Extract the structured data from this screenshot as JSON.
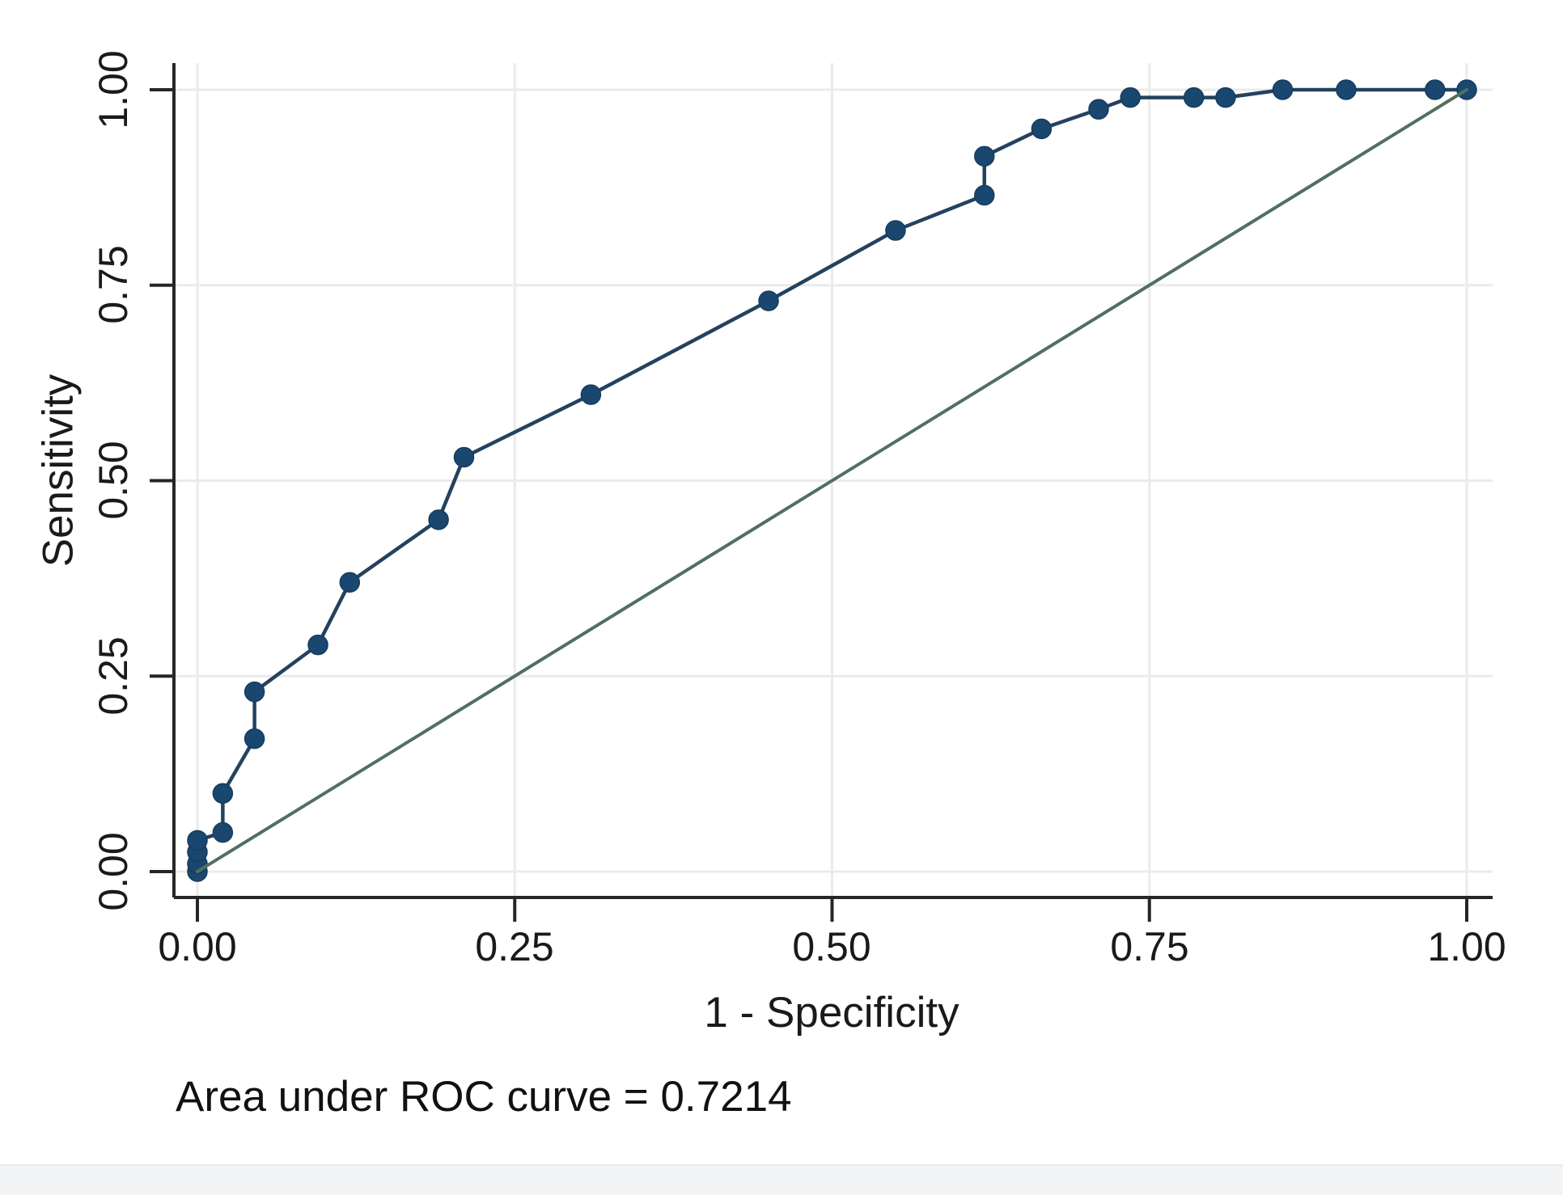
{
  "figure": {
    "caption": "Area under ROC curve = 0.7214"
  },
  "chart_data": {
    "type": "line",
    "title": "",
    "xlabel": "1 - Specificity",
    "ylabel": "Sensitivity",
    "xlim": [
      0,
      1
    ],
    "ylim": [
      0,
      1
    ],
    "grid": true,
    "x_ticks": [
      0.0,
      0.25,
      0.5,
      0.75,
      1.0
    ],
    "y_ticks": [
      0.0,
      0.25,
      0.5,
      0.75,
      1.0
    ],
    "x_tick_labels": [
      "0.00",
      "0.25",
      "0.50",
      "0.75",
      "1.00"
    ],
    "y_tick_labels": [
      "0.00",
      "0.25",
      "0.50",
      "0.75",
      "1.00"
    ],
    "annotation": "Area under ROC curve = 0.7214",
    "auc": 0.7214,
    "colors": {
      "roc_line": "#24425f",
      "roc_marker": "#1a476f",
      "reference_line": "#50705f",
      "axis": "#262626",
      "grid": "#ebebeb"
    },
    "series": [
      {
        "name": "ROC curve",
        "style": "line+markers",
        "points": [
          [
            0.0,
            0.0
          ],
          [
            0.0,
            0.01
          ],
          [
            0.0,
            0.025
          ],
          [
            0.0,
            0.04
          ],
          [
            0.02,
            0.05
          ],
          [
            0.02,
            0.1
          ],
          [
            0.045,
            0.17
          ],
          [
            0.045,
            0.23
          ],
          [
            0.095,
            0.29
          ],
          [
            0.12,
            0.37
          ],
          [
            0.19,
            0.45
          ],
          [
            0.21,
            0.53
          ],
          [
            0.31,
            0.61
          ],
          [
            0.45,
            0.73
          ],
          [
            0.55,
            0.82
          ],
          [
            0.62,
            0.865
          ],
          [
            0.62,
            0.915
          ],
          [
            0.665,
            0.95
          ],
          [
            0.71,
            0.975
          ],
          [
            0.735,
            0.99
          ],
          [
            0.785,
            0.99
          ],
          [
            0.81,
            0.99
          ],
          [
            0.855,
            1.0
          ],
          [
            0.905,
            1.0
          ],
          [
            0.975,
            1.0
          ],
          [
            1.0,
            1.0
          ]
        ]
      },
      {
        "name": "Reference diagonal",
        "style": "line",
        "points": [
          [
            0.0,
            0.0
          ],
          [
            1.0,
            1.0
          ]
        ]
      }
    ]
  }
}
